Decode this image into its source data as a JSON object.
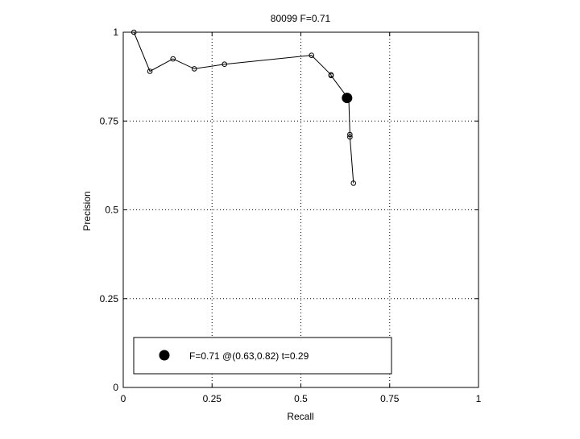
{
  "chart_data": {
    "type": "line",
    "title": "80099 F=0.71",
    "xlabel": "Recall",
    "ylabel": "Precision",
    "xlim": [
      0,
      1
    ],
    "ylim": [
      0,
      1
    ],
    "grid": true,
    "x_ticks": [
      {
        "value": 0,
        "label": "0"
      },
      {
        "value": 0.25,
        "label": "0.25"
      },
      {
        "value": 0.5,
        "label": "0.5"
      },
      {
        "value": 0.75,
        "label": "0.75"
      },
      {
        "value": 1,
        "label": "1"
      }
    ],
    "y_ticks": [
      {
        "value": 0,
        "label": "0"
      },
      {
        "value": 0.25,
        "label": "0.25"
      },
      {
        "value": 0.5,
        "label": "0.5"
      },
      {
        "value": 0.75,
        "label": "0.75"
      },
      {
        "value": 1,
        "label": "1"
      }
    ],
    "series": [
      {
        "marker": "open-circle",
        "color": "#000000",
        "points": [
          [
            0.03,
            1.0
          ],
          [
            0.075,
            0.89
          ],
          [
            0.14,
            0.925
          ],
          [
            0.2,
            0.897
          ],
          [
            0.285,
            0.91
          ],
          [
            0.53,
            0.935
          ],
          [
            0.585,
            0.88
          ],
          [
            0.585,
            0.878
          ],
          [
            0.63,
            0.818
          ],
          [
            0.635,
            0.81
          ],
          [
            0.638,
            0.712
          ],
          [
            0.638,
            0.705
          ],
          [
            0.648,
            0.575
          ]
        ]
      }
    ],
    "best_point": {
      "x": 0.63,
      "y": 0.815,
      "marker": "filled-circle",
      "color": "#000000"
    },
    "legend": {
      "placement": "bottom-left",
      "entries": [
        {
          "label": "F=0.71 @(0.63,0.82) t=0.29",
          "marker": "filled-circle"
        }
      ]
    }
  }
}
